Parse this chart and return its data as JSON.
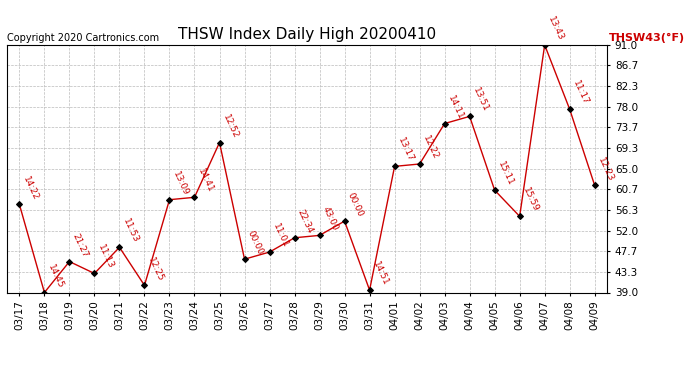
{
  "title": "THSW Index Daily High 20200410",
  "copyright": "Copyright 2020 Cartronics.com",
  "ylabel": "THSW43(°F)",
  "ylim": [
    39.0,
    91.0
  ],
  "yticks": [
    39.0,
    43.3,
    47.7,
    52.0,
    56.3,
    60.7,
    65.0,
    69.3,
    73.7,
    78.0,
    82.3,
    86.7,
    91.0
  ],
  "dates": [
    "03/17",
    "03/18",
    "03/19",
    "03/20",
    "03/21",
    "03/22",
    "03/23",
    "03/24",
    "03/25",
    "03/26",
    "03/27",
    "03/28",
    "03/29",
    "03/30",
    "03/31",
    "04/01",
    "04/02",
    "04/03",
    "04/04",
    "04/05",
    "04/06",
    "04/07",
    "04/08",
    "04/09"
  ],
  "values": [
    57.5,
    39.0,
    45.5,
    43.0,
    48.5,
    40.5,
    58.5,
    59.0,
    70.5,
    46.0,
    47.5,
    50.5,
    51.0,
    54.0,
    39.5,
    65.5,
    66.0,
    74.5,
    76.0,
    60.5,
    55.0,
    91.0,
    77.5,
    61.5
  ],
  "annotations": [
    "14:22",
    "14:45",
    "21:27",
    "11:13",
    "11:53",
    "12:25",
    "13:09",
    "14:41",
    "12:52",
    "00:00",
    "11:01",
    "22:34",
    "43:00",
    "00:00",
    "14:51",
    "13:17",
    "12:22",
    "14:11",
    "13:51",
    "15:11",
    "15:59",
    "13:43",
    "11:17",
    "12:23"
  ],
  "line_color": "#cc0000",
  "marker_color": "#000000",
  "bg_color": "#ffffff",
  "grid_color": "#bbbbbb",
  "title_fontsize": 11,
  "annotation_fontsize": 6.5,
  "axis_label_fontsize": 7.5,
  "copyright_fontsize": 7
}
